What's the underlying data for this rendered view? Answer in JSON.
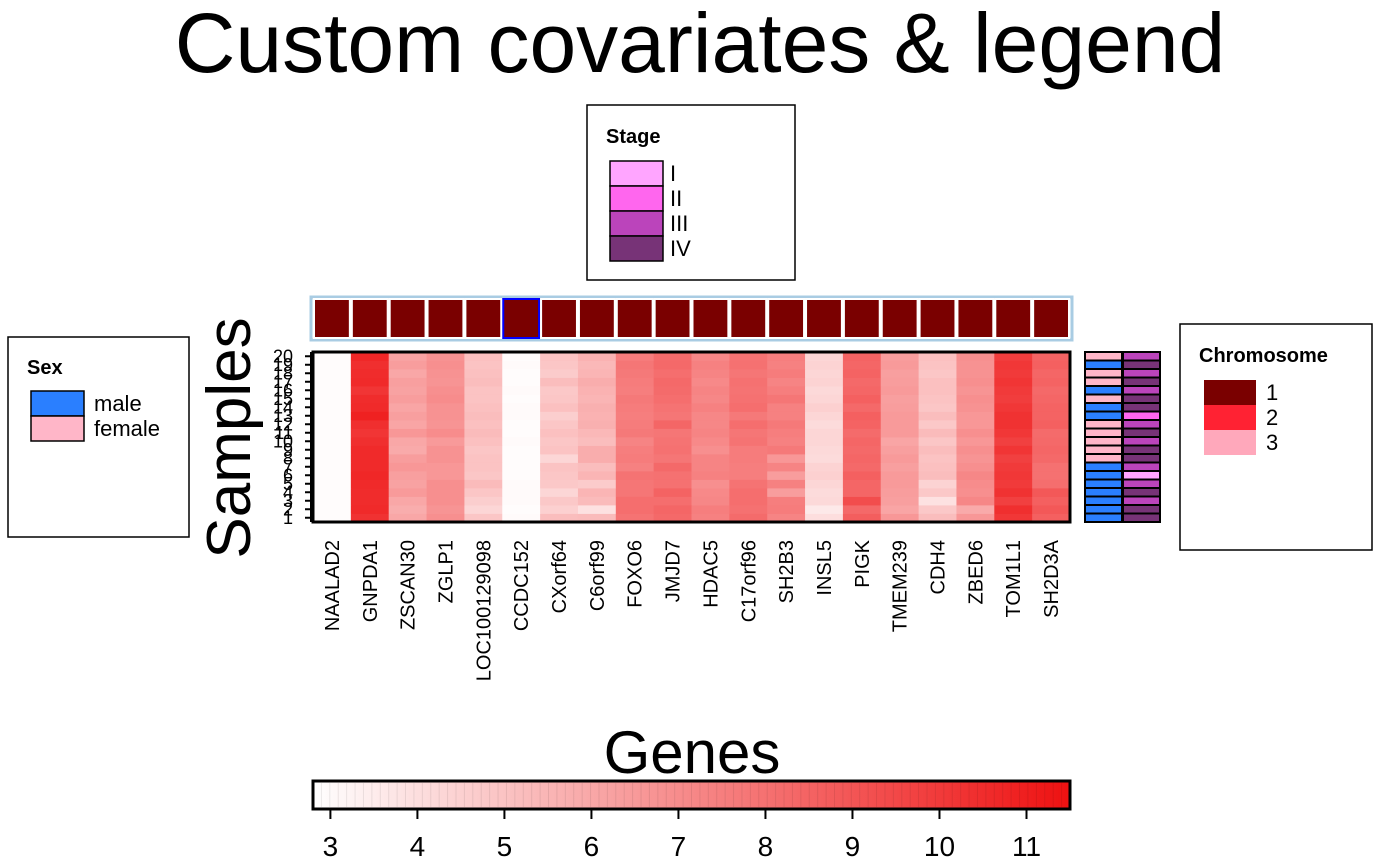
{
  "chart_data": {
    "type": "heatmap",
    "title": "Custom covariates & legend",
    "xlabel": "Genes",
    "ylabel": "Samples",
    "genes": [
      "NAALAD2",
      "GNPDA1",
      "ZSCAN30",
      "ZGLP1",
      "LOC100129098",
      "CCDC152",
      "CXorf64",
      "C6orf99",
      "FOXO6",
      "JMJD7",
      "HDAC5",
      "C17orf96",
      "SH2B3",
      "INSL5",
      "PIGK",
      "TMEM239",
      "CDH4",
      "ZBED6",
      "TOM1L1",
      "SH2D3A"
    ],
    "samples": [
      "1",
      "2",
      "3",
      "4",
      "5",
      "6",
      "7",
      "8",
      "9",
      "10",
      "11",
      "12",
      "13",
      "14",
      "15",
      "16",
      "17",
      "18",
      "19",
      "20"
    ],
    "colorbar": {
      "min": 2.8,
      "max": 11.5,
      "ticks": [
        3,
        4,
        5,
        6,
        7,
        8,
        9,
        10,
        11
      ],
      "low_color": "#ffffff",
      "high_color": "#ee1111"
    },
    "gene_means": [
      2.9,
      10.5,
      6.2,
      6.8,
      5.0,
      2.95,
      4.9,
      5.6,
      7.6,
      8.0,
      7.2,
      7.9,
      7.5,
      4.3,
      8.4,
      6.4,
      5.0,
      6.8,
      10.0,
      8.5
    ],
    "values_rows_bottom_to_top": [
      [
        2.9,
        10.3,
        6.0,
        6.9,
        4.9,
        3.0,
        5.2,
        5.3,
        7.9,
        8.3,
        7.4,
        8.2,
        7.3,
        4.0,
        8.7,
        6.6,
        5.2,
        6.6,
        10.1,
        8.6
      ],
      [
        2.9,
        10.6,
        5.8,
        6.7,
        4.3,
        2.9,
        4.5,
        3.9,
        8.1,
        8.4,
        7.5,
        8.0,
        7.6,
        3.6,
        8.3,
        6.1,
        4.8,
        5.9,
        10.4,
        8.9
      ],
      [
        2.9,
        10.5,
        6.0,
        6.9,
        4.6,
        3.0,
        4.8,
        5.3,
        8.1,
        8.1,
        7.2,
        8.1,
        7.5,
        4.2,
        9.3,
        6.3,
        3.9,
        7.2,
        9.8,
        8.6
      ],
      [
        2.9,
        10.5,
        6.5,
        6.9,
        4.9,
        3.0,
        4.3,
        5.5,
        7.8,
        8.5,
        7.1,
        8.1,
        6.4,
        4.1,
        8.4,
        6.4,
        4.8,
        6.9,
        10.3,
        8.9
      ],
      [
        2.9,
        10.6,
        6.2,
        6.9,
        5.3,
        3.0,
        4.8,
        4.7,
        7.8,
        8.0,
        6.9,
        7.9,
        7.4,
        4.3,
        8.4,
        6.5,
        4.4,
        7.0,
        10.0,
        8.1
      ],
      [
        2.9,
        10.7,
        6.3,
        6.6,
        4.9,
        2.9,
        4.9,
        5.5,
        7.9,
        8.0,
        7.4,
        7.5,
        6.4,
        4.5,
        8.6,
        6.5,
        5.2,
        7.2,
        10.1,
        8.0
      ],
      [
        2.9,
        10.6,
        6.6,
        6.6,
        5.0,
        2.9,
        5.0,
        5.2,
        7.4,
        8.3,
        7.3,
        7.5,
        7.3,
        4.4,
        8.3,
        6.3,
        5.1,
        6.9,
        10.0,
        8.0
      ],
      [
        2.9,
        10.6,
        6.4,
        6.8,
        5.0,
        2.9,
        4.3,
        5.8,
        7.6,
        7.8,
        7.3,
        7.6,
        6.6,
        4.1,
        8.4,
        6.5,
        5.0,
        6.7,
        9.8,
        8.3
      ],
      [
        2.9,
        10.6,
        5.9,
        6.8,
        4.9,
        2.9,
        5.0,
        5.8,
        7.5,
        8.0,
        6.9,
        7.6,
        7.7,
        4.2,
        8.3,
        6.3,
        5.2,
        6.9,
        10.2,
        8.4
      ],
      [
        2.9,
        10.4,
        6.0,
        6.5,
        5.1,
        3.0,
        4.9,
        5.2,
        7.3,
        7.9,
        7.1,
        7.9,
        7.4,
        4.3,
        8.4,
        6.1,
        4.9,
        6.6,
        9.8,
        8.3
      ],
      [
        2.9,
        10.2,
        6.6,
        7.0,
        5.3,
        2.9,
        5.1,
        5.4,
        7.7,
        7.8,
        7.3,
        7.8,
        7.5,
        4.3,
        8.2,
        6.5,
        5.3,
        6.9,
        10.1,
        8.2
      ],
      [
        2.9,
        10.4,
        6.1,
        6.7,
        5.1,
        2.9,
        4.9,
        5.7,
        7.6,
        8.4,
        7.2,
        8.1,
        7.7,
        4.1,
        8.5,
        6.5,
        4.8,
        6.6,
        10.3,
        8.6
      ],
      [
        2.9,
        10.9,
        6.3,
        6.8,
        5.2,
        3.0,
        4.6,
        5.6,
        7.5,
        7.8,
        7.2,
        7.7,
        7.4,
        4.3,
        8.6,
        6.5,
        5.2,
        6.6,
        10.3,
        8.5
      ],
      [
        2.9,
        10.6,
        6.1,
        6.8,
        5.1,
        3.0,
        5.1,
        5.7,
        7.6,
        7.9,
        7.4,
        8.1,
        7.4,
        4.5,
        8.3,
        6.4,
        4.9,
        6.8,
        10.1,
        8.5
      ],
      [
        2.9,
        10.5,
        6.4,
        7.0,
        5.0,
        2.9,
        4.9,
        5.5,
        7.7,
        8.1,
        7.2,
        8.0,
        7.8,
        4.3,
        8.6,
        6.3,
        5.0,
        6.9,
        9.9,
        8.4
      ],
      [
        2.9,
        10.2,
        6.2,
        6.9,
        5.0,
        3.0,
        4.8,
        5.6,
        7.5,
        8.2,
        7.3,
        7.9,
        7.5,
        4.2,
        8.4,
        6.5,
        5.1,
        6.7,
        10.0,
        8.3
      ],
      [
        2.9,
        10.6,
        6.3,
        6.7,
        5.2,
        2.9,
        5.2,
        5.8,
        7.6,
        8.3,
        7.1,
        8.0,
        7.3,
        4.4,
        8.3,
        6.4,
        5.1,
        6.9,
        10.2,
        8.5
      ],
      [
        2.9,
        10.5,
        6.0,
        6.8,
        5.1,
        2.9,
        4.7,
        5.5,
        7.7,
        8.1,
        7.3,
        7.8,
        7.6,
        4.3,
        8.5,
        6.3,
        4.9,
        6.8,
        10.0,
        8.4
      ],
      [
        2.9,
        10.4,
        6.4,
        6.9,
        5.0,
        3.0,
        4.9,
        5.4,
        7.8,
        8.3,
        7.4,
        8.0,
        7.4,
        4.4,
        8.4,
        6.5,
        5.0,
        6.8,
        10.1,
        8.6
      ],
      [
        2.9,
        10.7,
        6.2,
        6.8,
        5.1,
        2.9,
        5.0,
        5.6,
        7.6,
        8.2,
        7.2,
        7.9,
        7.5,
        4.3,
        8.5,
        6.4,
        5.1,
        6.9,
        9.9,
        8.5
      ]
    ],
    "column_covariate": {
      "name": "Chromosome",
      "levels": [
        "1",
        "2",
        "3"
      ],
      "colors": [
        "#7a0000",
        "#ff2233",
        "#ffa8bb"
      ],
      "values": [
        "1",
        "1",
        "1",
        "1",
        "1",
        "1",
        "1",
        "1",
        "1",
        "1",
        "1",
        "1",
        "1",
        "1",
        "1",
        "1",
        "1",
        "1",
        "1",
        "1"
      ],
      "border_colors": [
        "#ffffff",
        "#ffffff",
        "#ffffff",
        "#ffffff",
        "#ffffff",
        "#0000ff",
        "#ffffff",
        "#ffffff",
        "#ffffff",
        "#ffffff",
        "#ffffff",
        "#ffffff",
        "#ffffff",
        "#ffffff",
        "#ffffff",
        "#ffffff",
        "#ffffff",
        "#ffffff",
        "#ffffff",
        "#ffffff"
      ],
      "frame_color": "#a9cce3"
    },
    "row_covariates": [
      {
        "name": "Sex",
        "levels": [
          "male",
          "female"
        ],
        "colors": [
          "#2a7fff",
          "#ffb6c8"
        ],
        "values_bottom_to_top": [
          "male",
          "male",
          "male",
          "male",
          "male",
          "male",
          "male",
          "female",
          "female",
          "female",
          "female",
          "female",
          "male",
          "male",
          "female",
          "male",
          "female",
          "female",
          "male",
          "female"
        ]
      },
      {
        "name": "Stage",
        "levels": [
          "I",
          "II",
          "III",
          "IV"
        ],
        "colors": [
          "#ffa5ff",
          "#ff66ee",
          "#bb44bb",
          "#773377"
        ],
        "values_bottom_to_top": [
          "IV",
          "IV",
          "III",
          "IV",
          "III",
          "I",
          "III",
          "IV",
          "IV",
          "III",
          "IV",
          "III",
          "II",
          "IV",
          "IV",
          "III",
          "IV",
          "III",
          "IV",
          "III"
        ]
      }
    ]
  }
}
